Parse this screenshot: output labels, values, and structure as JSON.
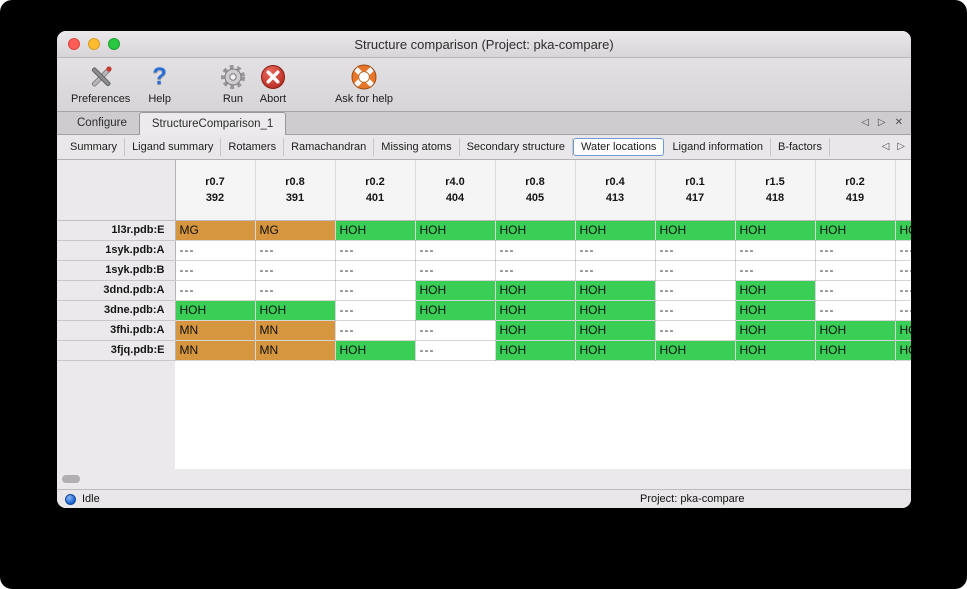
{
  "window": {
    "title": "Structure comparison (Project: pka-compare)"
  },
  "toolbar": {
    "items": [
      {
        "label": "Preferences",
        "icon": "tools-icon"
      },
      {
        "label": "Help",
        "icon": "question-mark-icon"
      },
      {
        "label": "Run",
        "icon": "gear-icon"
      },
      {
        "label": "Abort",
        "icon": "abort-cross-icon"
      },
      {
        "label": "Ask for help",
        "icon": "lifebuoy-icon"
      }
    ]
  },
  "doc_tabs": {
    "tabs": [
      {
        "label": "Configure"
      },
      {
        "label": "StructureComparison_1"
      }
    ],
    "prev_icon": "◁",
    "next_icon": "▷",
    "close_icon": "✕"
  },
  "view_tabs": {
    "tabs": [
      "Summary",
      "Ligand summary",
      "Rotamers",
      "Ramachandran",
      "Missing atoms",
      "Secondary structure",
      "Water locations",
      "Ligand information",
      "B-factors"
    ],
    "selected": "Water locations",
    "prev_icon": "◁",
    "next_icon": "▷"
  },
  "table": {
    "columns": [
      [
        "r0.7",
        "392"
      ],
      [
        "r0.8",
        "391"
      ],
      [
        "r0.2",
        "401"
      ],
      [
        "r4.0",
        "404"
      ],
      [
        "r0.8",
        "405"
      ],
      [
        "r0.4",
        "413"
      ],
      [
        "r0.1",
        "417"
      ],
      [
        "r1.5",
        "418"
      ],
      [
        "r0.2",
        "419"
      ],
      [
        "",
        ""
      ]
    ],
    "rows": [
      {
        "label": "1l3r.pdb:E",
        "cells": [
          "MG",
          "MG",
          "HOH",
          "HOH",
          "HOH",
          "HOH",
          "HOH",
          "HOH",
          "HOH",
          "HOH"
        ]
      },
      {
        "label": "1syk.pdb:A",
        "cells": [
          "---",
          "---",
          "---",
          "---",
          "---",
          "---",
          "---",
          "---",
          "---",
          "---"
        ]
      },
      {
        "label": "1syk.pdb:B",
        "cells": [
          "---",
          "---",
          "---",
          "---",
          "---",
          "---",
          "---",
          "---",
          "---",
          "---"
        ]
      },
      {
        "label": "3dnd.pdb:A",
        "cells": [
          "---",
          "---",
          "---",
          "HOH",
          "HOH",
          "HOH",
          "---",
          "HOH",
          "---",
          "---"
        ]
      },
      {
        "label": "3dne.pdb:A",
        "cells": [
          "HOH",
          "HOH",
          "---",
          "HOH",
          "HOH",
          "HOH",
          "---",
          "HOH",
          "---",
          "---"
        ]
      },
      {
        "label": "3fhi.pdb:A",
        "cells": [
          "MN",
          "MN",
          "---",
          "---",
          "HOH",
          "HOH",
          "---",
          "HOH",
          "HOH",
          "HOH"
        ]
      },
      {
        "label": "3fjq.pdb:E",
        "cells": [
          "MN",
          "MN",
          "HOH",
          "---",
          "HOH",
          "HOH",
          "HOH",
          "HOH",
          "HOH",
          "HOH"
        ]
      }
    ]
  },
  "colors": {
    "water": "#3bce57",
    "metal": "#d5963f"
  },
  "status_bar": {
    "state": "Idle",
    "project": "Project: pka-compare"
  }
}
